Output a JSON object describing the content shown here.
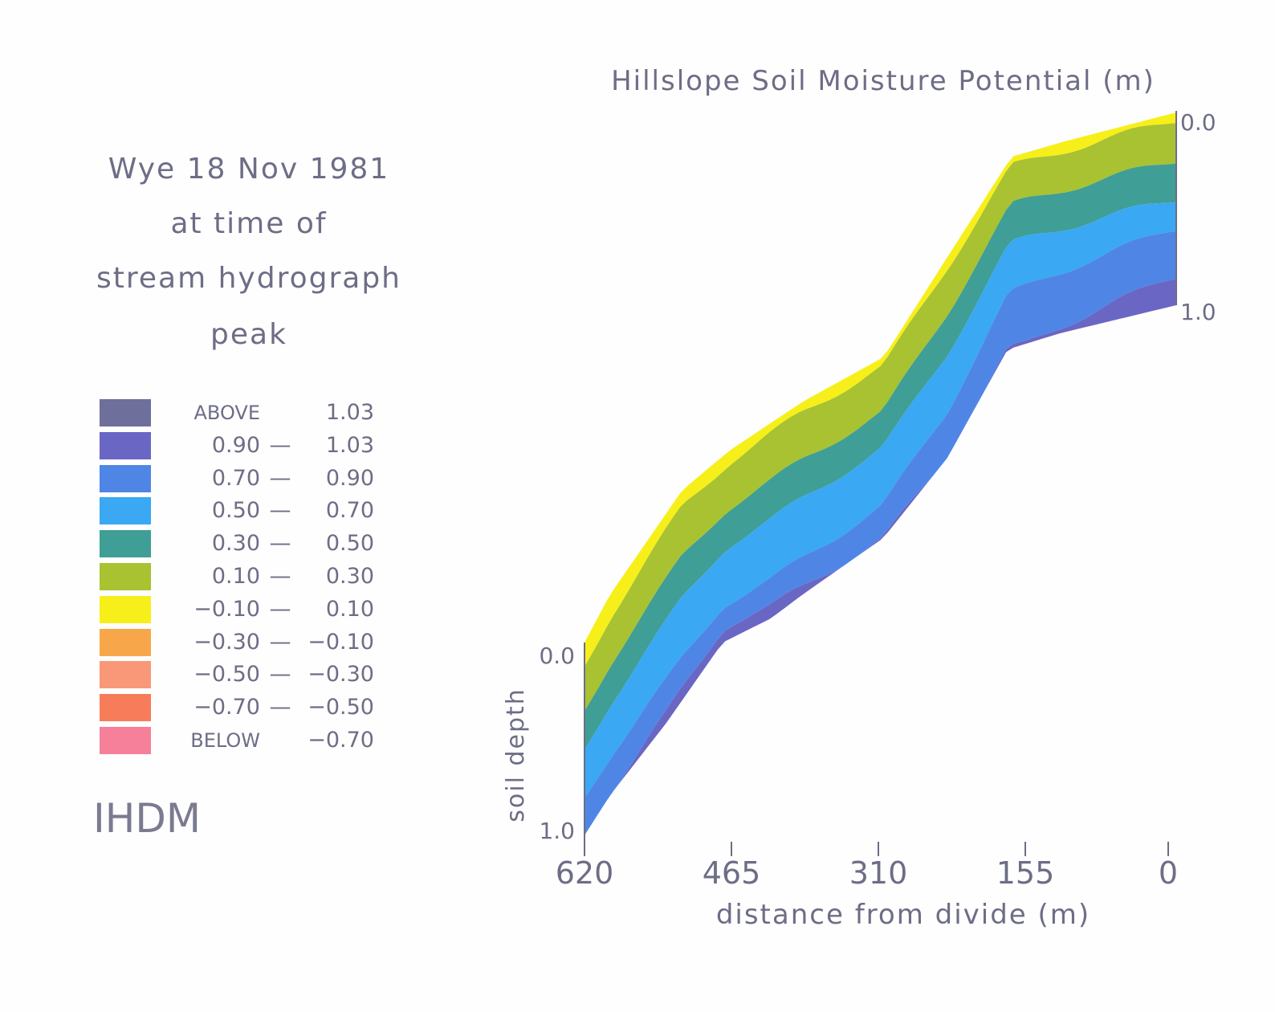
{
  "left_panel": {
    "caption_lines": [
      "Wye 18 Nov 1981",
      "at time of",
      "stream hydrograph",
      "peak"
    ],
    "logo_text": "IHDM"
  },
  "chart_data": {
    "type": "heatmap",
    "subtype": "filled contour cross-section",
    "title": "Hillslope Soil Moisture Potential (m)",
    "xlabel": "distance from divide (m)",
    "ylabel": "soil depth",
    "x_ticks": [
      "620",
      "465",
      "310",
      "155",
      "0"
    ],
    "x_values": [
      620,
      465,
      310,
      155,
      0
    ],
    "xlim": [
      620,
      0
    ],
    "left_depth_ticks": [
      "0.0",
      "1.0"
    ],
    "right_depth_ticks": [
      "0.0",
      "1.0"
    ],
    "ylim": [
      0.0,
      1.0
    ],
    "grid": false,
    "legend_placement": "left",
    "legend": [
      {
        "low": "ABOVE",
        "sep": "",
        "high": "1.03",
        "color": "#6e6f9a"
      },
      {
        "low": "0.90",
        "sep": "—",
        "high": "1.03",
        "color": "#6a66c4"
      },
      {
        "low": "0.70",
        "sep": "—",
        "high": "0.90",
        "color": "#4f86e6"
      },
      {
        "low": "0.50",
        "sep": "—",
        "high": "0.70",
        "color": "#3aa8f2"
      },
      {
        "low": "0.30",
        "sep": "—",
        "high": "0.50",
        "color": "#3f9e96"
      },
      {
        "low": "0.10",
        "sep": "—",
        "high": "0.30",
        "color": "#a8c232"
      },
      {
        "low": "−0.10",
        "sep": "—",
        "high": "0.10",
        "color": "#f7ef1a"
      },
      {
        "low": "−0.30",
        "sep": "—",
        "high": "−0.10",
        "color": "#f8a64a"
      },
      {
        "low": "−0.50",
        "sep": "—",
        "high": "−0.30",
        "color": "#f89878"
      },
      {
        "low": "−0.70",
        "sep": "—",
        "high": "−0.50",
        "color": "#f77c5a"
      },
      {
        "low": "BELOW",
        "sep": "",
        "high": "−0.70",
        "color": "#f6809a"
      }
    ],
    "contour_depths_at_x": {
      "x": [
        620,
        465,
        310,
        155,
        0
      ],
      "boundaries": [
        {
          "between": [
            "-0.10 - 0.10",
            "0.10 - 0.30"
          ],
          "depth": [
            0.12,
            0.06,
            0.05,
            0.05,
            0.04
          ]
        },
        {
          "between": [
            "0.10 - 0.30",
            "0.30 - 0.50"
          ],
          "depth": [
            0.35,
            0.3,
            0.3,
            0.25,
            0.25
          ]
        },
        {
          "between": [
            "0.30 - 0.50",
            "0.50 - 0.70"
          ],
          "depth": [
            0.55,
            0.5,
            0.5,
            0.45,
            0.45
          ]
        },
        {
          "between": [
            "0.50 - 0.70",
            "0.70 - 0.90"
          ],
          "depth": [
            0.8,
            0.8,
            0.82,
            0.7,
            0.6
          ]
        },
        {
          "between": [
            "0.70 - 0.90",
            "0.90 - 1.03"
          ],
          "depth": [
            1.0,
            0.92,
            1.0,
            1.0,
            0.85
          ]
        }
      ]
    }
  }
}
